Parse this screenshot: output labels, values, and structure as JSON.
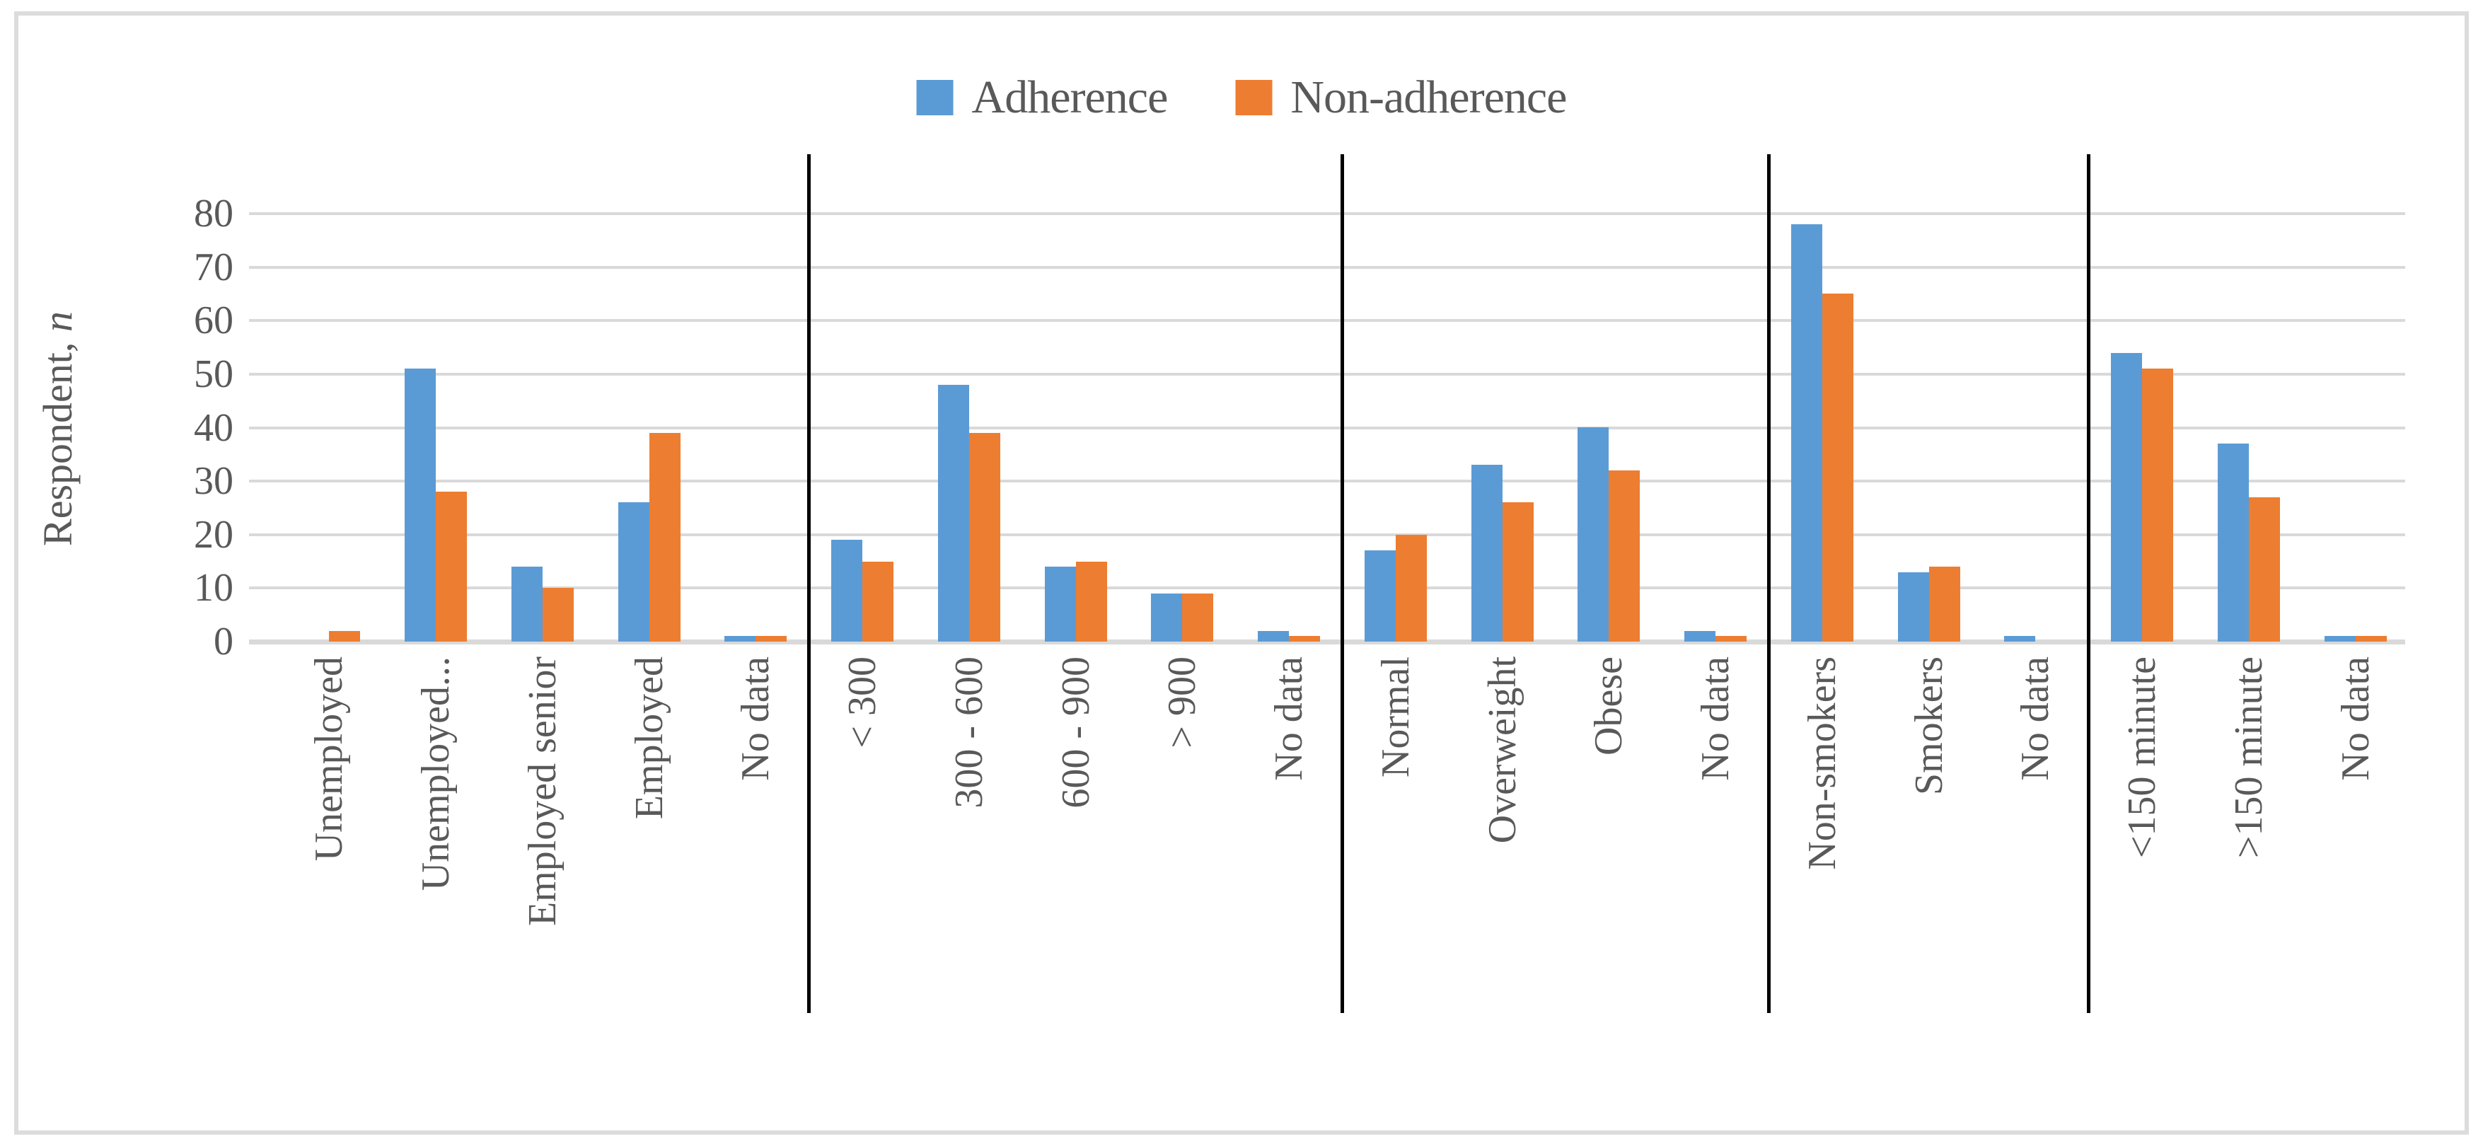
{
  "legend": {
    "items": [
      {
        "label": "Adherence",
        "color": "#5B9BD5"
      },
      {
        "label": "Non-adherence",
        "color": "#ED7D31"
      }
    ]
  },
  "y_axis": {
    "title_text": "Respondent, ",
    "title_italic": "n",
    "min": 0,
    "max": 80,
    "step": 10
  },
  "colors": {
    "adherence": "#5B9BD5",
    "non_adherence": "#ED7D31",
    "gridline": "#d9d9d9",
    "axis_text": "#595959",
    "separator": "#000000",
    "frame_border": "#dcdcdc"
  },
  "chart_data": {
    "type": "bar",
    "title": "",
    "ylabel": "Respondent, n",
    "ylim": [
      0,
      80
    ],
    "ytick_step": 10,
    "grid": true,
    "legend_position": "top-center",
    "series_names": [
      "Adherence",
      "Non-adherence"
    ],
    "groups": [
      {
        "categories": [
          "Unemployed",
          "Unemployed...",
          "Employed senior",
          "Employed",
          "No data"
        ],
        "series": [
          {
            "name": "Adherence",
            "values": [
              0,
              51,
              14,
              26,
              1
            ]
          },
          {
            "name": "Non-adherence",
            "values": [
              2,
              28,
              10,
              39,
              1
            ]
          }
        ]
      },
      {
        "categories": [
          "< 300",
          "300 - 600",
          "600 - 900",
          "> 900",
          "No data"
        ],
        "series": [
          {
            "name": "Adherence",
            "values": [
              19,
              48,
              14,
              9,
              2
            ]
          },
          {
            "name": "Non-adherence",
            "values": [
              15,
              39,
              15,
              9,
              1
            ]
          }
        ]
      },
      {
        "categories": [
          "Normal",
          "Overweight",
          "Obese",
          "No data"
        ],
        "series": [
          {
            "name": "Adherence",
            "values": [
              17,
              33,
              40,
              2
            ]
          },
          {
            "name": "Non-adherence",
            "values": [
              20,
              26,
              32,
              1
            ]
          }
        ]
      },
      {
        "categories": [
          "Non-smokers",
          "Smokers",
          "No data"
        ],
        "series": [
          {
            "name": "Adherence",
            "values": [
              78,
              13,
              1
            ]
          },
          {
            "name": "Non-adherence",
            "values": [
              65,
              14,
              0
            ]
          }
        ]
      },
      {
        "categories": [
          "<150 minute",
          ">150 minute",
          "No data"
        ],
        "series": [
          {
            "name": "Adherence",
            "values": [
              54,
              37,
              1
            ]
          },
          {
            "name": "Non-adherence",
            "values": [
              51,
              27,
              1
            ]
          }
        ]
      }
    ]
  }
}
